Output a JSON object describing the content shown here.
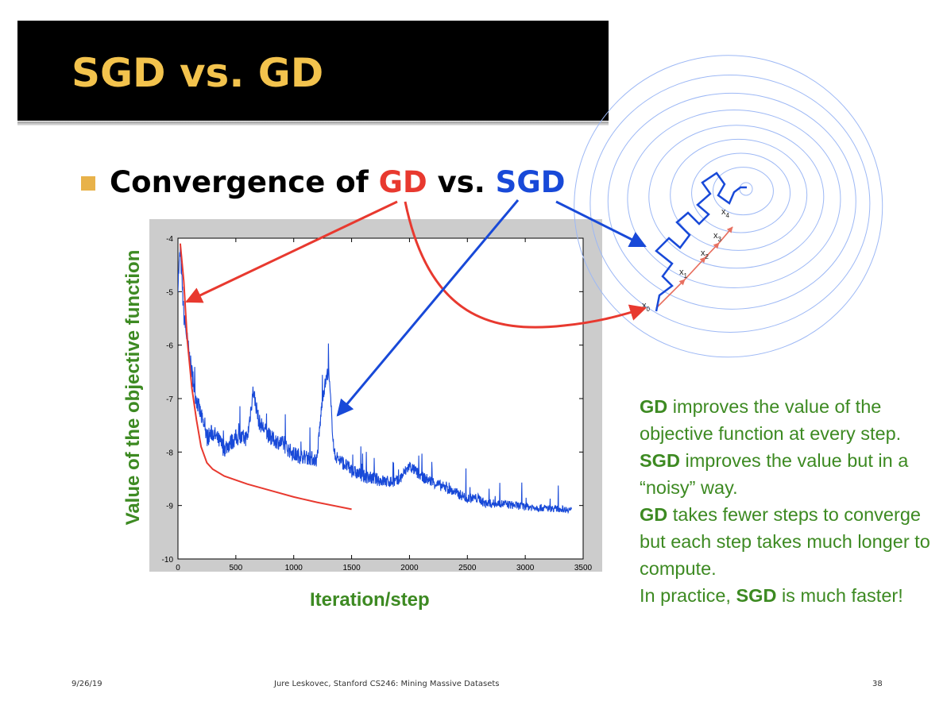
{
  "slide": {
    "title": "SGD vs. GD",
    "bullet": {
      "prefix": "Convergence of ",
      "gd": "GD",
      "mid": " vs. ",
      "sgd": "SGD"
    }
  },
  "colors": {
    "title": "#f3c34d",
    "title_bar": "#000000",
    "bullet_square": "#e8b24a",
    "gd": "#e8392f",
    "sgd": "#1849d8",
    "note_text": "#3d8a22",
    "contour": "#9db8f5"
  },
  "chart_data": {
    "type": "line",
    "xlabel": "Iteration/step",
    "ylabel": "Value of the objective function",
    "xlim": [
      0,
      3500
    ],
    "ylim": [
      -10,
      -4
    ],
    "xticks": [
      0,
      500,
      1000,
      1500,
      2000,
      2500,
      3000,
      3500
    ],
    "yticks": [
      -4,
      -5,
      -6,
      -7,
      -8,
      -9,
      -10
    ],
    "grid": false,
    "series": [
      {
        "color": "#e8392f",
        "x": [
          20,
          50,
          80,
          120,
          160,
          200,
          250,
          300,
          400,
          600,
          800,
          1000,
          1200,
          1500
        ],
        "y": [
          -4.1,
          -4.8,
          -5.9,
          -6.8,
          -7.4,
          -7.9,
          -8.2,
          -8.32,
          -8.45,
          -8.6,
          -8.72,
          -8.84,
          -8.94,
          -9.07
        ]
      },
      {
        "color": "#1849d8",
        "x": [
          0,
          20,
          50,
          100,
          150,
          200,
          250,
          300,
          400,
          500,
          600,
          650,
          700,
          800,
          900,
          1000,
          1200,
          1250,
          1300,
          1350,
          1400,
          1500,
          1600,
          1800,
          1900,
          2000,
          2100,
          2200,
          2400,
          2500,
          2600,
          2650,
          2800,
          3000,
          3200,
          3400
        ],
        "y": [
          -4.9,
          -4.3,
          -5.5,
          -6.3,
          -7.0,
          -7.4,
          -7.8,
          -7.7,
          -8.0,
          -7.8,
          -7.8,
          -6.9,
          -7.5,
          -7.8,
          -7.9,
          -8.1,
          -8.2,
          -7.0,
          -6.5,
          -8.1,
          -8.2,
          -8.4,
          -8.5,
          -8.6,
          -8.6,
          -8.3,
          -8.5,
          -8.6,
          -8.8,
          -8.9,
          -8.9,
          -9.0,
          -9.0,
          -9.05,
          -9.08,
          -9.1
        ]
      }
    ]
  },
  "diagram": {
    "labels": [
      {
        "base": "x",
        "sub": "0"
      },
      {
        "base": "x",
        "sub": "1"
      },
      {
        "base": "x",
        "sub": "2"
      },
      {
        "base": "x",
        "sub": "3"
      },
      {
        "base": "x",
        "sub": "4"
      }
    ]
  },
  "notes": [
    {
      "bold": "GD",
      "text": " improves the value of the objective function at every step."
    },
    {
      "bold": "SGD",
      "text": " improves the value but in a “noisy” way."
    },
    {
      "bold": "GD",
      "text": " takes fewer steps to converge but each step takes much longer to compute."
    },
    {
      "prefix": "In practice, ",
      "bold": "SGD",
      "text": " is much faster!"
    }
  ],
  "footer": {
    "date": "9/26/19",
    "credit": "Jure Leskovec, Stanford CS246: Mining Massive Datasets",
    "page": "38"
  }
}
